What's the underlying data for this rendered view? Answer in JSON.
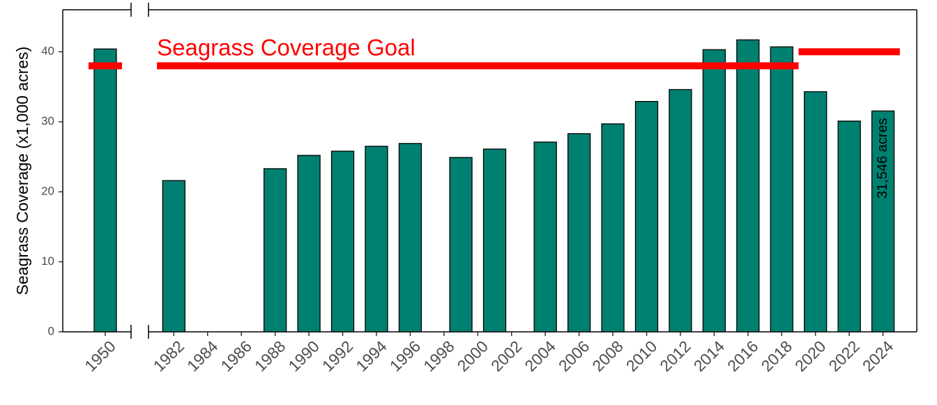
{
  "chart_data": {
    "type": "bar",
    "y_label": "Seagrass Coverage (x1,000 acres)",
    "ylim": [
      0,
      46
    ],
    "yticks": [
      0,
      10,
      20,
      30,
      40
    ],
    "color": "#008070",
    "goal_color": "#ff0000",
    "annotation": "Seagrass Coverage Goal",
    "panels": [
      {
        "categories": [
          "1950"
        ],
        "values": [
          40.4
        ],
        "goal": 38
      },
      {
        "x": [
          1982,
          1988,
          1990,
          1992,
          1994,
          1996,
          1999,
          2001,
          2004,
          2006,
          2008,
          2010,
          2012,
          2014,
          2016,
          2018,
          2020,
          2022,
          2024
        ],
        "values": [
          21.6,
          23.3,
          25.2,
          25.8,
          26.5,
          26.9,
          24.9,
          26.1,
          27.1,
          28.3,
          29.7,
          32.9,
          34.6,
          40.3,
          41.7,
          40.7,
          34.3,
          30.1,
          31.546
        ],
        "value_labels": [
          null,
          null,
          null,
          null,
          null,
          null,
          null,
          null,
          null,
          null,
          null,
          null,
          null,
          null,
          null,
          null,
          null,
          null,
          "31,546 acres"
        ],
        "xlim": [
          1980.5,
          2026
        ],
        "xticks": [
          1982,
          1984,
          1986,
          1988,
          1990,
          1992,
          1994,
          1996,
          1998,
          2000,
          2002,
          2004,
          2006,
          2008,
          2010,
          2012,
          2014,
          2016,
          2018,
          2020,
          2022,
          2024
        ],
        "goal": [
          {
            "x": [
              1981,
              2019
            ],
            "value": 38
          },
          {
            "x": [
              2019,
              2025
            ],
            "value": 40
          }
        ]
      }
    ]
  }
}
